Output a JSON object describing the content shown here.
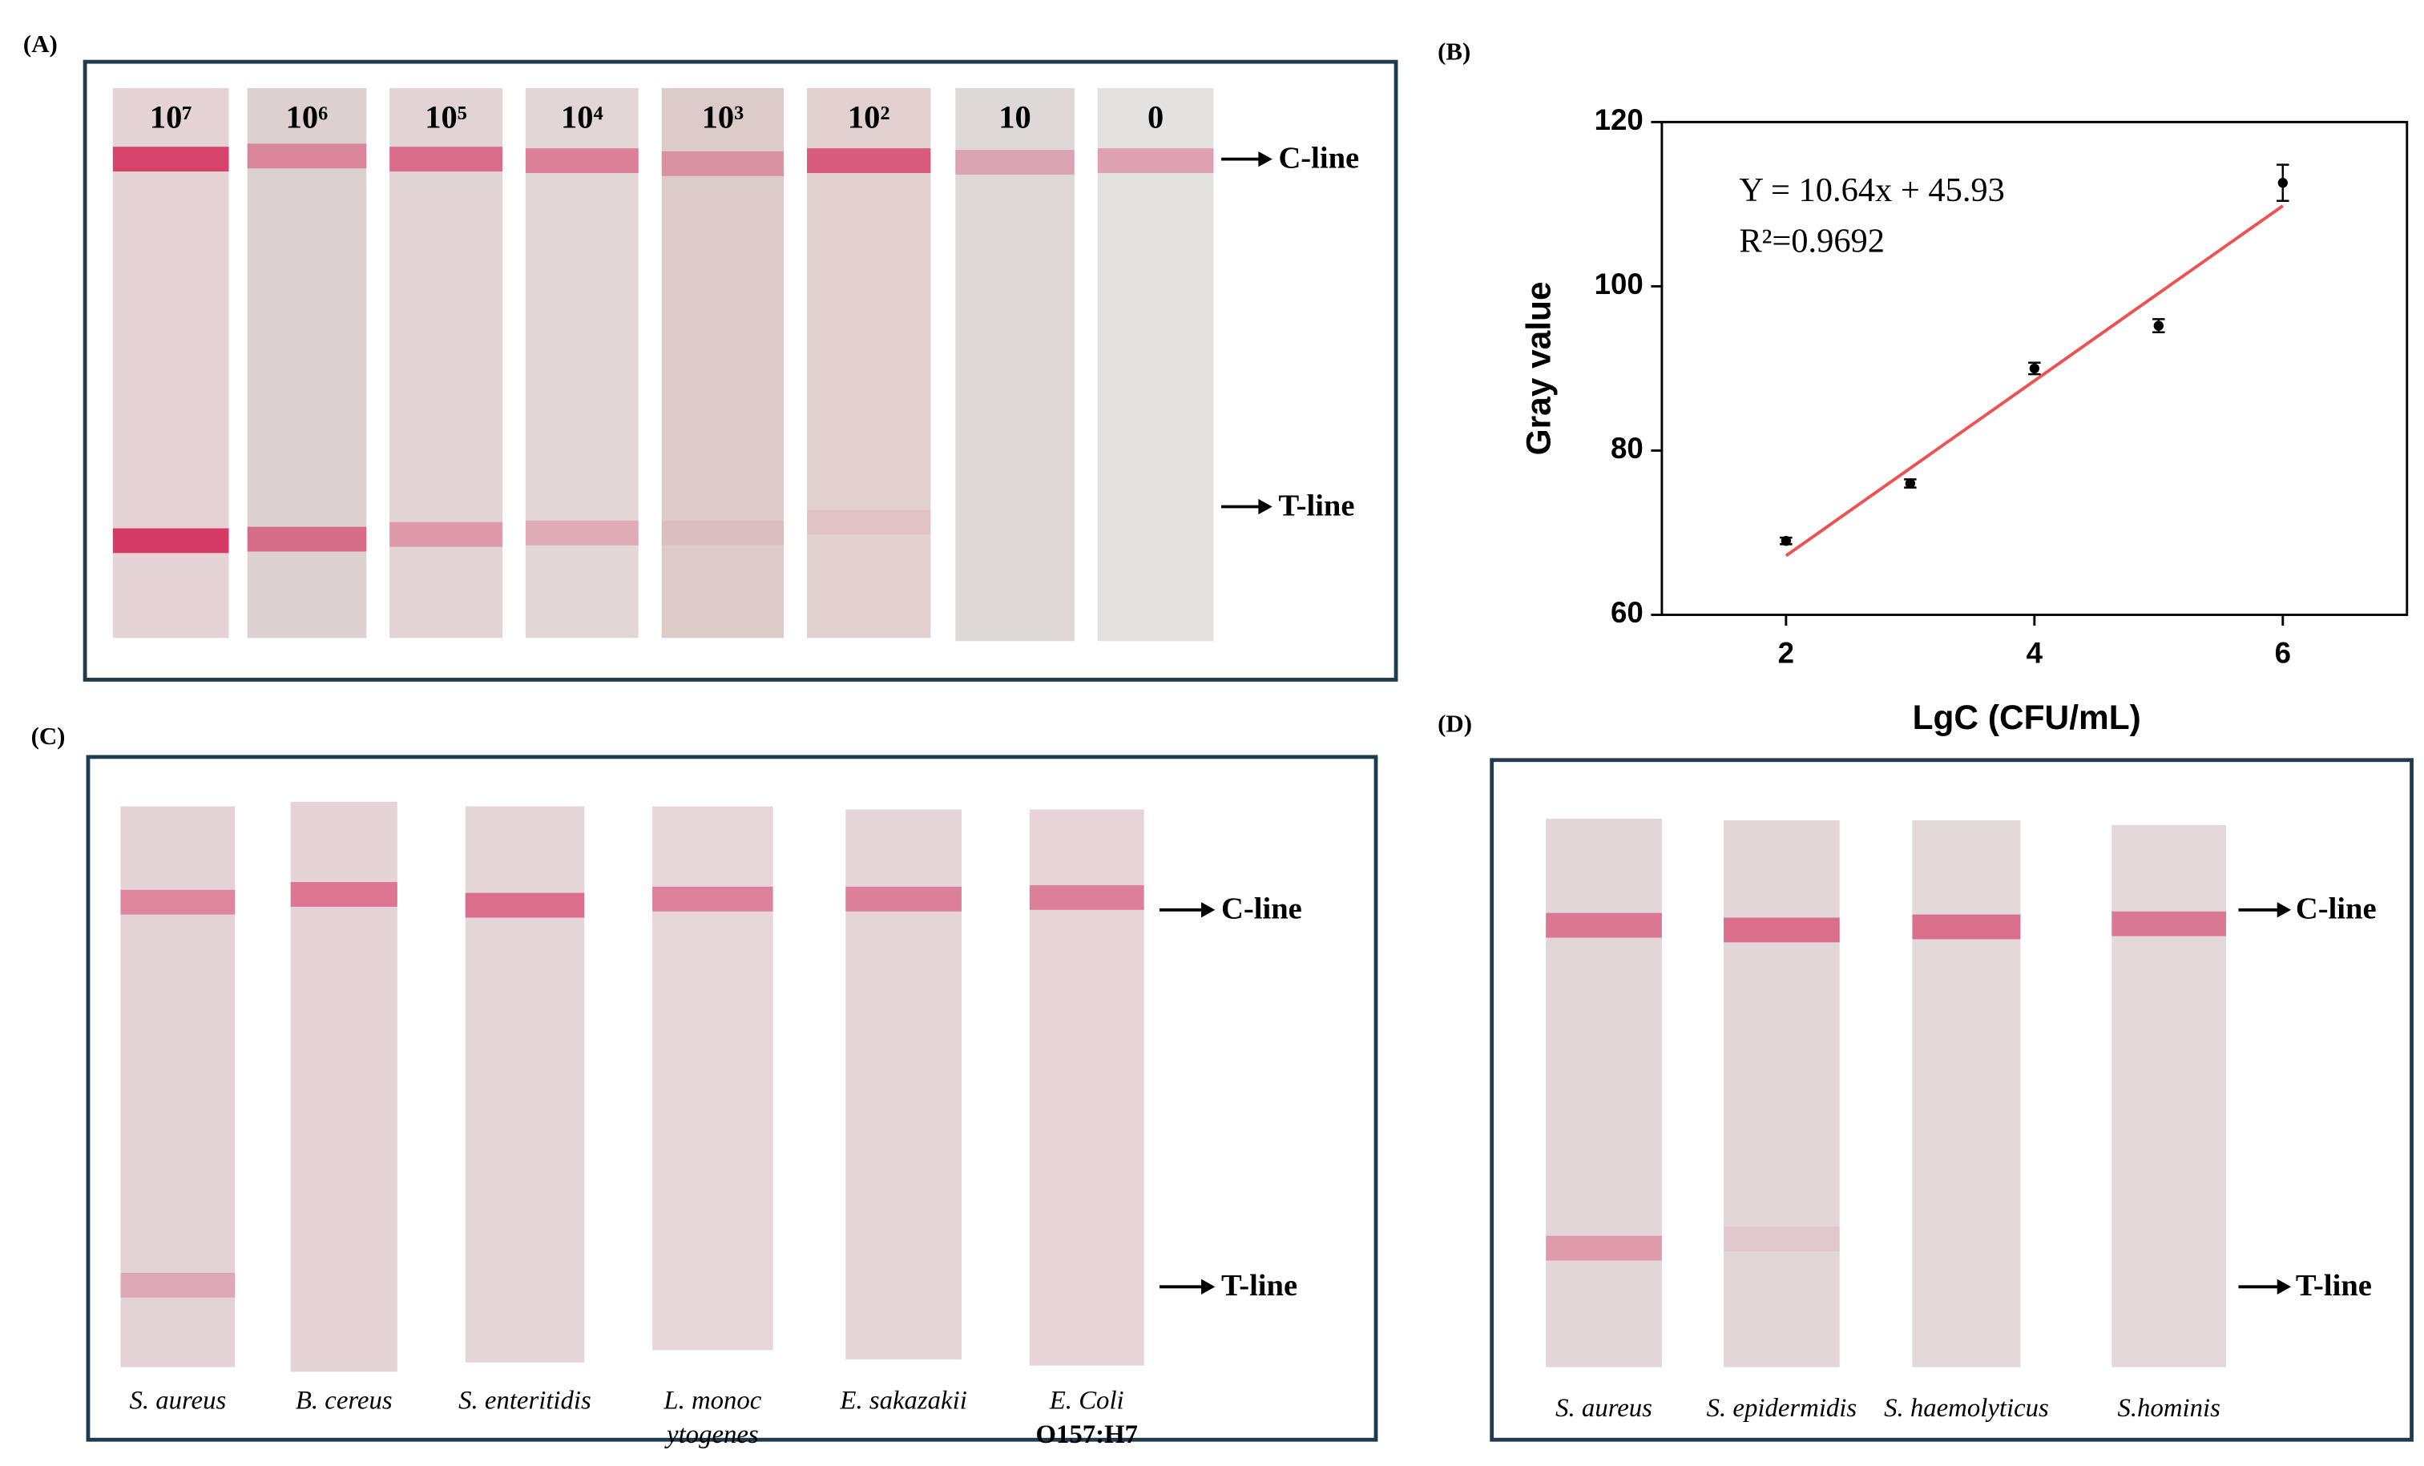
{
  "panel_a": {
    "label": "(A)",
    "strips": [
      "10⁷",
      "10⁶",
      "10⁵",
      "10⁴",
      "10³",
      "10²",
      "10",
      "0"
    ],
    "c_line": "C-line",
    "t_line": "T-line"
  },
  "chart_data": {
    "type": "scatter",
    "panel_label": "(B)",
    "annotations": [
      "Y = 10.64x + 45.93",
      "R²=0.9692"
    ],
    "x_label": "LgC (CFU/mL)",
    "y_label": "Gray value",
    "x": [
      2,
      3,
      4,
      5,
      6
    ],
    "values": [
      69,
      76,
      90,
      95.2,
      112.6
    ],
    "errors": [
      0.4,
      0.5,
      0.7,
      0.8,
      2.2
    ],
    "color": "#000000",
    "fit_line": {
      "x": [
        2,
        6
      ],
      "values": [
        67.2,
        109.8
      ],
      "color": "#f05050"
    },
    "xlim": [
      1,
      7
    ],
    "ylim": [
      60,
      120
    ],
    "xticks": [
      2,
      4,
      6
    ],
    "yticks": [
      60,
      80,
      100,
      120
    ],
    "grid": false
  },
  "panel_c": {
    "label": "(C)",
    "strips": [
      [
        "S. aureus"
      ],
      [
        "B. cereus"
      ],
      [
        "S. enteritidis"
      ],
      [
        "L. monoc",
        "ytogenes"
      ],
      [
        "E. sakazakii"
      ],
      [
        "E. Coli",
        "O157:H7"
      ]
    ],
    "c_line": "C-line",
    "t_line": "T-line"
  },
  "panel_d": {
    "label": "(D)",
    "strips": [
      [
        "S. aureus"
      ],
      [
        "S. epidermidis"
      ],
      [
        "S. haemolyticus"
      ],
      [
        "S.hominis"
      ]
    ],
    "c_line": "C-line",
    "t_line": "T-line"
  }
}
